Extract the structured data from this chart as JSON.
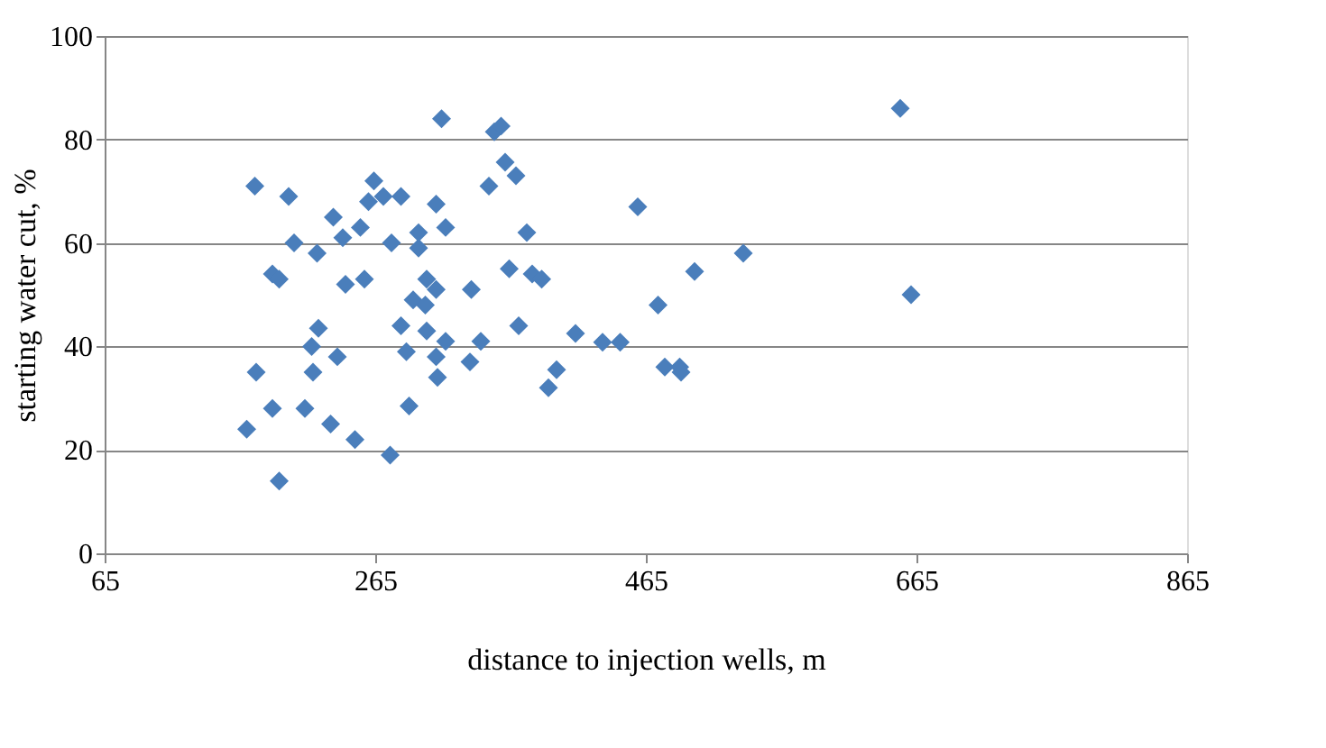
{
  "chart_data": {
    "type": "scatter",
    "xlabel": "distance to injection wells, m",
    "ylabel": "starting water cut, %",
    "x": [
      170,
      177,
      176,
      189,
      189,
      194,
      194,
      201,
      205,
      213,
      218,
      222,
      223,
      219,
      232,
      237,
      234,
      241,
      243,
      250,
      254,
      257,
      260,
      264,
      271,
      277,
      284,
      276,
      284,
      288,
      293,
      297,
      297,
      303,
      303,
      302,
      310,
      317,
      310,
      317,
      311,
      314,
      310,
      290,
      335,
      336,
      343,
      349,
      353,
      358,
      361,
      369,
      364,
      371,
      377,
      381,
      388,
      393,
      399,
      413,
      433,
      446,
      459,
      474,
      479,
      490,
      491,
      501,
      537,
      653,
      661
    ],
    "values": [
      24,
      35,
      71,
      28,
      54,
      53,
      14,
      69,
      60,
      28,
      40,
      58,
      43.5,
      35,
      25,
      38,
      65,
      61,
      52,
      22,
      63,
      53,
      68,
      72,
      69,
      60,
      69,
      19,
      44,
      39,
      49,
      59,
      62,
      53,
      43,
      48,
      51,
      63,
      38,
      41,
      34,
      84,
      67.5,
      28.5,
      37,
      51,
      41,
      71,
      81.5,
      82.6,
      75.6,
      73,
      55,
      44,
      62,
      54,
      53,
      32,
      35.5,
      42.5,
      40.8,
      40.8,
      67,
      48,
      36,
      36,
      35,
      54.5,
      58,
      86,
      50
    ],
    "color": "#4a7ebb",
    "marker": "diamond",
    "xlim": [
      65,
      865
    ],
    "xticks": [
      65,
      265,
      465,
      665,
      865
    ],
    "ylim": [
      0,
      100
    ],
    "yticks": [
      0,
      20,
      40,
      60,
      80,
      100
    ],
    "grid": "y"
  }
}
